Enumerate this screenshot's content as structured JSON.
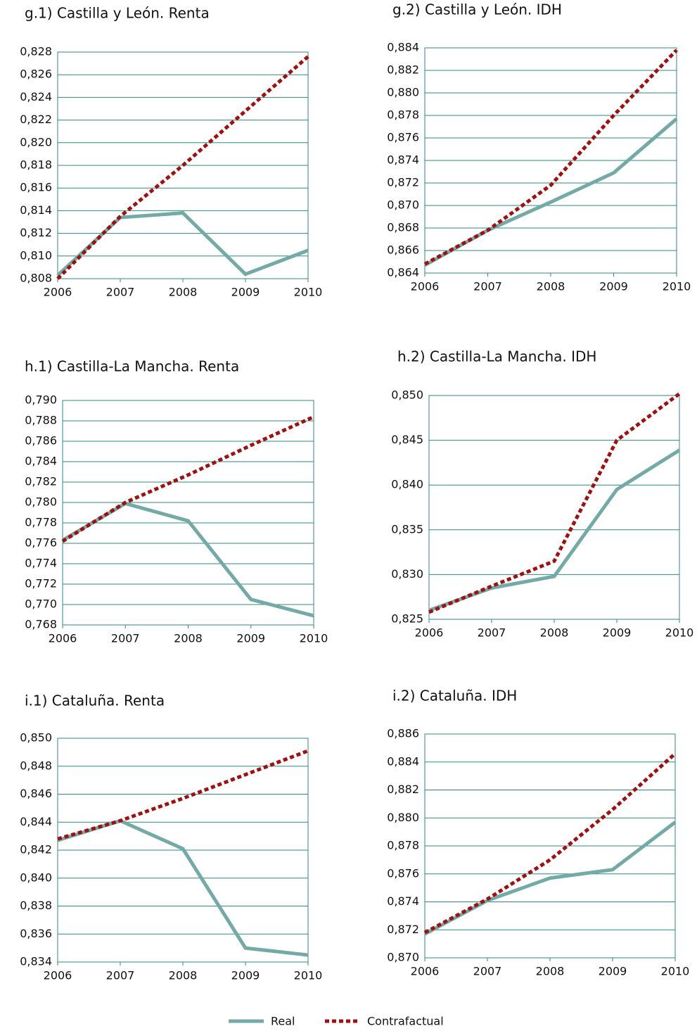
{
  "chart_data": [
    {
      "type": "line",
      "title": "g.1) Castilla y León. Renta",
      "x": [
        2006,
        2007,
        2008,
        2009,
        2010
      ],
      "xlim": [
        2006,
        2010
      ],
      "xticks": [
        2006,
        2007,
        2008,
        2009,
        2010
      ],
      "ylim": [
        0.808,
        0.828
      ],
      "yticks": [
        {
          "value": 0.808,
          "label": "0,808"
        },
        {
          "value": 0.81,
          "label": "0,810"
        },
        {
          "value": 0.812,
          "label": "0,812"
        },
        {
          "value": 0.814,
          "label": "0,814"
        },
        {
          "value": 0.816,
          "label": "0,816"
        },
        {
          "value": 0.818,
          "label": "0,818"
        },
        {
          "value": 0.82,
          "label": "0,820"
        },
        {
          "value": 0.822,
          "label": "0,822"
        },
        {
          "value": 0.824,
          "label": "0,824"
        },
        {
          "value": 0.826,
          "label": "0,826"
        },
        {
          "value": 0.828,
          "label": "0,828"
        }
      ],
      "grid": true,
      "series": [
        {
          "name": "Real",
          "color": "#74aaa6",
          "values": [
            0.8083,
            0.8134,
            0.8138,
            0.8084,
            0.8105
          ]
        },
        {
          "name": "Contrafactual",
          "color": "#a01010",
          "values": [
            0.808,
            0.8135,
            0.818,
            0.8228,
            0.8276
          ]
        }
      ]
    },
    {
      "type": "line",
      "title": "g.2) Castilla y León. IDH",
      "x": [
        2006,
        2007,
        2008,
        2009,
        2010
      ],
      "xlim": [
        2006,
        2010
      ],
      "xticks": [
        2006,
        2007,
        2008,
        2009,
        2010
      ],
      "ylim": [
        0.864,
        0.884
      ],
      "yticks": [
        {
          "value": 0.864,
          "label": "0,864"
        },
        {
          "value": 0.866,
          "label": "0,866"
        },
        {
          "value": 0.868,
          "label": "0,868"
        },
        {
          "value": 0.87,
          "label": "0,870"
        },
        {
          "value": 0.872,
          "label": "0,872"
        },
        {
          "value": 0.874,
          "label": "0,874"
        },
        {
          "value": 0.876,
          "label": "0,876"
        },
        {
          "value": 0.878,
          "label": "0,878"
        },
        {
          "value": 0.88,
          "label": "0,880"
        },
        {
          "value": 0.882,
          "label": "0,882"
        },
        {
          "value": 0.884,
          "label": "0,884"
        }
      ],
      "grid": true,
      "series": [
        {
          "name": "Real",
          "color": "#74aaa6",
          "values": [
            0.8647,
            0.8678,
            0.8703,
            0.8729,
            0.8777
          ]
        },
        {
          "name": "Contrafactual",
          "color": "#a01010",
          "values": [
            0.8648,
            0.8678,
            0.8718,
            0.878,
            0.8838
          ]
        }
      ]
    },
    {
      "type": "line",
      "title": "h.1) Castilla-La Mancha. Renta",
      "x": [
        2006,
        2007,
        2008,
        2009,
        2010
      ],
      "xlim": [
        2006,
        2010
      ],
      "xticks": [
        2006,
        2007,
        2008,
        2009,
        2010
      ],
      "ylim": [
        0.768,
        0.79
      ],
      "yticks": [
        {
          "value": 0.768,
          "label": "0,768"
        },
        {
          "value": 0.77,
          "label": "0,770"
        },
        {
          "value": 0.772,
          "label": "0,772"
        },
        {
          "value": 0.774,
          "label": "0,774"
        },
        {
          "value": 0.776,
          "label": "0,776"
        },
        {
          "value": 0.778,
          "label": "0,778"
        },
        {
          "value": 0.78,
          "label": "0,780"
        },
        {
          "value": 0.782,
          "label": "0,782"
        },
        {
          "value": 0.784,
          "label": "0,784"
        },
        {
          "value": 0.786,
          "label": "0,786"
        },
        {
          "value": 0.788,
          "label": "0,788"
        },
        {
          "value": 0.79,
          "label": "0,790"
        }
      ],
      "grid": true,
      "series": [
        {
          "name": "Real",
          "color": "#74aaa6",
          "values": [
            0.7763,
            0.7799,
            0.7782,
            0.7705,
            0.7689
          ]
        },
        {
          "name": "Contrafactual",
          "color": "#a01010",
          "values": [
            0.7762,
            0.78,
            0.7827,
            0.7856,
            0.7884
          ]
        }
      ]
    },
    {
      "type": "line",
      "title": "h.2) Castilla-La Mancha. IDH",
      "x": [
        2006,
        2007,
        2008,
        2009,
        2010
      ],
      "xlim": [
        2006,
        2010
      ],
      "xticks": [
        2006,
        2007,
        2008,
        2009,
        2010
      ],
      "ylim": [
        0.825,
        0.85
      ],
      "yticks": [
        {
          "value": 0.825,
          "label": "0,825"
        },
        {
          "value": 0.83,
          "label": "0,830"
        },
        {
          "value": 0.835,
          "label": "0,835"
        },
        {
          "value": 0.84,
          "label": "0,840"
        },
        {
          "value": 0.845,
          "label": "0,845"
        },
        {
          "value": 0.85,
          "label": "0,850"
        }
      ],
      "grid": true,
      "series": [
        {
          "name": "Real",
          "color": "#74aaa6",
          "values": [
            0.826,
            0.8285,
            0.8298,
            0.8395,
            0.8439
          ]
        },
        {
          "name": "Contrafactual",
          "color": "#a01010",
          "values": [
            0.8258,
            0.8287,
            0.8315,
            0.845,
            0.8502
          ]
        }
      ]
    },
    {
      "type": "line",
      "title": "i.1) Cataluña. Renta",
      "x": [
        2006,
        2007,
        2008,
        2009,
        2010
      ],
      "xlim": [
        2006,
        2010
      ],
      "xticks": [
        2006,
        2007,
        2008,
        2009,
        2010
      ],
      "ylim": [
        0.834,
        0.85
      ],
      "yticks": [
        {
          "value": 0.834,
          "label": "0,834"
        },
        {
          "value": 0.836,
          "label": "0,836"
        },
        {
          "value": 0.838,
          "label": "0,838"
        },
        {
          "value": 0.84,
          "label": "0,840"
        },
        {
          "value": 0.842,
          "label": "0,842"
        },
        {
          "value": 0.844,
          "label": "0,844"
        },
        {
          "value": 0.846,
          "label": "0,846"
        },
        {
          "value": 0.848,
          "label": "0,848"
        },
        {
          "value": 0.85,
          "label": "0,850"
        }
      ],
      "grid": true,
      "series": [
        {
          "name": "Real",
          "color": "#74aaa6",
          "values": [
            0.8427,
            0.8441,
            0.8421,
            0.835,
            0.8345
          ]
        },
        {
          "name": "Contrafactual",
          "color": "#a01010",
          "values": [
            0.8428,
            0.8441,
            0.8457,
            0.8474,
            0.8491
          ]
        }
      ]
    },
    {
      "type": "line",
      "title": "i.2) Cataluña. IDH",
      "x": [
        2006,
        2007,
        2008,
        2009,
        2010
      ],
      "xlim": [
        2006,
        2010
      ],
      "xticks": [
        2006,
        2007,
        2008,
        2009,
        2010
      ],
      "ylim": [
        0.87,
        0.886
      ],
      "yticks": [
        {
          "value": 0.87,
          "label": "0,870"
        },
        {
          "value": 0.872,
          "label": "0,872"
        },
        {
          "value": 0.874,
          "label": "0,874"
        },
        {
          "value": 0.876,
          "label": "0,876"
        },
        {
          "value": 0.878,
          "label": "0,878"
        },
        {
          "value": 0.88,
          "label": "0,880"
        },
        {
          "value": 0.882,
          "label": "0,882"
        },
        {
          "value": 0.884,
          "label": "0,884"
        },
        {
          "value": 0.886,
          "label": "0,886"
        }
      ],
      "grid": true,
      "series": [
        {
          "name": "Real",
          "color": "#74aaa6",
          "values": [
            0.8717,
            0.8741,
            0.8757,
            0.8763,
            0.8797
          ]
        },
        {
          "name": "Contrafactual",
          "color": "#a01010",
          "values": [
            0.8718,
            0.8742,
            0.877,
            0.8806,
            0.8846
          ]
        }
      ]
    }
  ]
}
